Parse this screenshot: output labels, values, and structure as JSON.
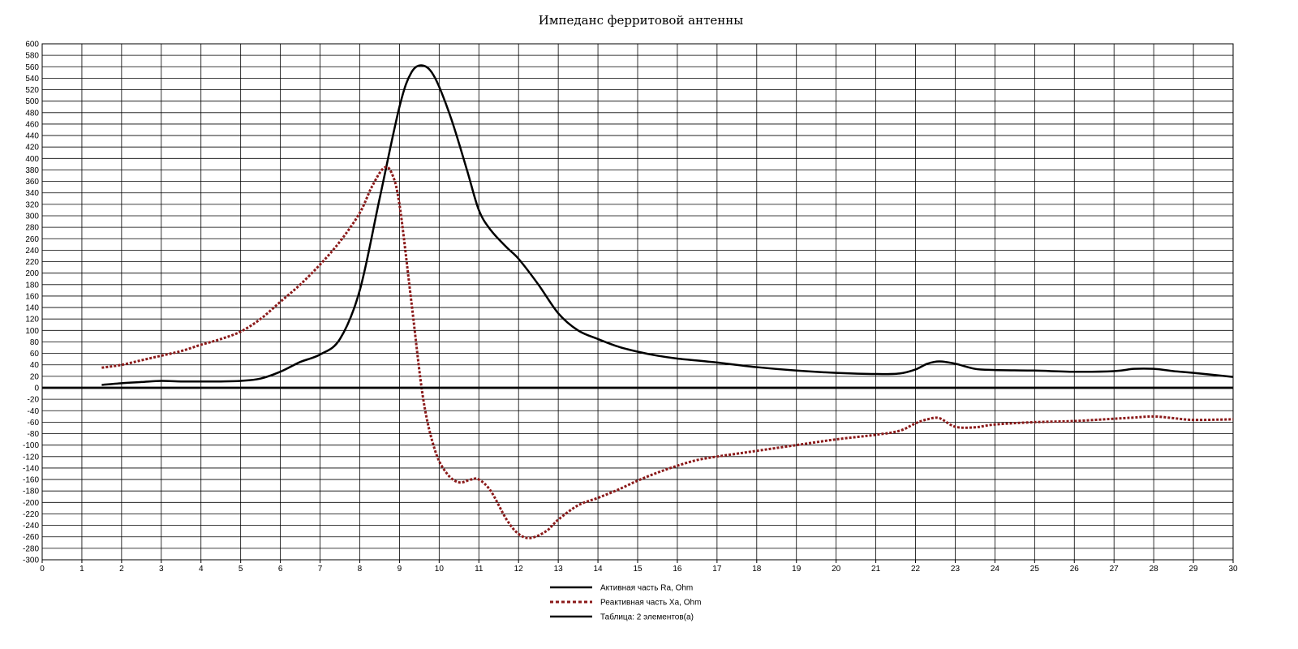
{
  "chart_data": {
    "type": "line",
    "title": "Импеданс ферритовой антенны",
    "xlabel": "",
    "ylabel": "",
    "xlim": [
      0,
      30
    ],
    "ylim": [
      -300,
      600
    ],
    "x_ticks": [
      0,
      1,
      2,
      3,
      4,
      5,
      6,
      7,
      8,
      9,
      10,
      11,
      12,
      13,
      14,
      15,
      16,
      17,
      18,
      19,
      20,
      21,
      22,
      23,
      24,
      25,
      26,
      27,
      28,
      29,
      30
    ],
    "y_ticks": [
      600,
      580,
      560,
      540,
      520,
      500,
      480,
      460,
      440,
      420,
      400,
      380,
      360,
      340,
      320,
      300,
      280,
      260,
      240,
      220,
      200,
      180,
      160,
      140,
      120,
      100,
      80,
      60,
      40,
      20,
      0,
      -20,
      -40,
      -60,
      -80,
      -100,
      -120,
      -140,
      -160,
      -180,
      -200,
      -220,
      -240,
      -260,
      -280,
      -300
    ],
    "grid": true,
    "legend_position": "bottom-center",
    "series": [
      {
        "name": "Активная часть Ra, Ohm",
        "color": "#000000",
        "style": "solid",
        "points": [
          [
            1.5,
            5
          ],
          [
            2,
            8
          ],
          [
            2.5,
            10
          ],
          [
            3,
            12
          ],
          [
            3.5,
            11
          ],
          [
            4,
            11
          ],
          [
            4.5,
            11
          ],
          [
            5,
            12
          ],
          [
            5.5,
            16
          ],
          [
            6,
            28
          ],
          [
            6.5,
            45
          ],
          [
            7,
            58
          ],
          [
            7.5,
            85
          ],
          [
            8,
            170
          ],
          [
            8.5,
            330
          ],
          [
            9,
            490
          ],
          [
            9.3,
            550
          ],
          [
            9.6,
            562
          ],
          [
            9.9,
            540
          ],
          [
            10.3,
            470
          ],
          [
            10.7,
            380
          ],
          [
            11,
            310
          ],
          [
            11.3,
            275
          ],
          [
            11.7,
            245
          ],
          [
            12,
            225
          ],
          [
            12.5,
            180
          ],
          [
            13,
            130
          ],
          [
            13.5,
            100
          ],
          [
            14,
            85
          ],
          [
            14.5,
            72
          ],
          [
            15,
            63
          ],
          [
            15.5,
            56
          ],
          [
            16,
            51
          ],
          [
            17,
            44
          ],
          [
            18,
            36
          ],
          [
            19,
            30
          ],
          [
            20,
            26
          ],
          [
            21,
            24
          ],
          [
            21.6,
            25
          ],
          [
            22,
            32
          ],
          [
            22.3,
            42
          ],
          [
            22.6,
            46
          ],
          [
            23,
            42
          ],
          [
            23.5,
            33
          ],
          [
            24,
            31
          ],
          [
            25,
            30
          ],
          [
            26,
            28
          ],
          [
            27,
            29
          ],
          [
            27.5,
            33
          ],
          [
            28,
            33
          ],
          [
            28.5,
            29
          ],
          [
            29,
            26
          ],
          [
            30,
            19
          ]
        ]
      },
      {
        "name": "Реактивная часть Xa, Ohm",
        "color": "#8b1a1a",
        "style": "dotted",
        "points": [
          [
            1.5,
            35
          ],
          [
            2,
            40
          ],
          [
            2.5,
            48
          ],
          [
            3,
            56
          ],
          [
            3.5,
            64
          ],
          [
            4,
            75
          ],
          [
            4.5,
            85
          ],
          [
            5,
            98
          ],
          [
            5.5,
            120
          ],
          [
            6,
            150
          ],
          [
            6.5,
            180
          ],
          [
            7,
            215
          ],
          [
            7.5,
            255
          ],
          [
            8,
            305
          ],
          [
            8.3,
            350
          ],
          [
            8.6,
            383
          ],
          [
            8.8,
            375
          ],
          [
            9,
            320
          ],
          [
            9.3,
            150
          ],
          [
            9.6,
            -20
          ],
          [
            9.9,
            -110
          ],
          [
            10.2,
            -150
          ],
          [
            10.5,
            -165
          ],
          [
            10.8,
            -160
          ],
          [
            11,
            -160
          ],
          [
            11.3,
            -180
          ],
          [
            11.7,
            -230
          ],
          [
            12,
            -255
          ],
          [
            12.3,
            -262
          ],
          [
            12.7,
            -250
          ],
          [
            13,
            -230
          ],
          [
            13.5,
            -205
          ],
          [
            14,
            -192
          ],
          [
            14.5,
            -178
          ],
          [
            15,
            -162
          ],
          [
            15.5,
            -148
          ],
          [
            16,
            -136
          ],
          [
            16.5,
            -126
          ],
          [
            17,
            -120
          ],
          [
            17.5,
            -115
          ],
          [
            18,
            -110
          ],
          [
            19,
            -100
          ],
          [
            20,
            -90
          ],
          [
            21,
            -82
          ],
          [
            21.6,
            -75
          ],
          [
            22,
            -62
          ],
          [
            22.3,
            -55
          ],
          [
            22.6,
            -53
          ],
          [
            23,
            -68
          ],
          [
            23.5,
            -69
          ],
          [
            24,
            -64
          ],
          [
            25,
            -60
          ],
          [
            26,
            -58
          ],
          [
            27,
            -54
          ],
          [
            27.5,
            -52
          ],
          [
            28,
            -50
          ],
          [
            28.5,
            -53
          ],
          [
            29,
            -56
          ],
          [
            30,
            -55
          ]
        ]
      },
      {
        "name": "Таблица: 2 элементов(а)",
        "color": "#000000",
        "style": "solid",
        "points": [
          [
            0,
            0
          ],
          [
            30,
            0
          ]
        ]
      }
    ]
  }
}
